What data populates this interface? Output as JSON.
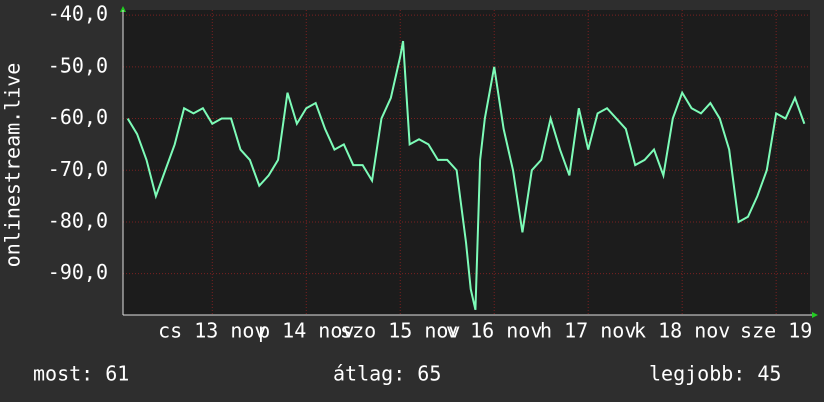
{
  "chart_data": {
    "type": "line",
    "y_label": "onlinestream.live",
    "x": [
      12.1,
      12.2,
      12.3,
      12.4,
      12.5,
      12.6,
      12.7,
      12.8,
      12.9,
      13.0,
      13.1,
      13.2,
      13.3,
      13.4,
      13.5,
      13.6,
      13.7,
      13.8,
      13.9,
      14.0,
      14.1,
      14.2,
      14.3,
      14.4,
      14.5,
      14.6,
      14.7,
      14.8,
      14.9,
      15.0,
      15.03,
      15.1,
      15.2,
      15.3,
      15.4,
      15.5,
      15.6,
      15.7,
      15.75,
      15.8,
      15.85,
      15.9,
      16.0,
      16.1,
      16.2,
      16.3,
      16.4,
      16.5,
      16.6,
      16.7,
      16.8,
      16.9,
      17.0,
      17.1,
      17.2,
      17.3,
      17.4,
      17.5,
      17.6,
      17.7,
      17.8,
      17.9,
      18.0,
      18.1,
      18.2,
      18.3,
      18.4,
      18.5,
      18.6,
      18.7,
      18.8,
      18.9,
      19.0,
      19.1,
      19.2,
      19.3
    ],
    "series": [
      {
        "color": "#7dfcb8",
        "values": [
          -60,
          -63,
          -68,
          -75,
          -70,
          -65,
          -58,
          -59,
          -58,
          -61,
          -60,
          -60,
          -66,
          -68,
          -73,
          -71,
          -68,
          -55,
          -61,
          -58,
          -57,
          -62,
          -66,
          -65,
          -69,
          -69,
          -72,
          -60,
          -56,
          -48,
          -45,
          -65,
          -64,
          -65,
          -68,
          -68,
          -70,
          -84,
          -93,
          -97,
          -68,
          -60,
          -50,
          -62,
          -70,
          -82,
          -70,
          -68,
          -60,
          -66,
          -71,
          -58,
          -66,
          -59,
          -58,
          -60,
          -62,
          -69,
          -68,
          -66,
          -71,
          -60,
          -55,
          -58,
          -59,
          -57,
          -60,
          -66,
          -80,
          -79,
          -75,
          -70,
          -59,
          -60,
          -56,
          -61
        ]
      }
    ],
    "xlim": [
      12.05,
      19.36
    ],
    "xticks": [
      {
        "value": 13,
        "label": "cs 13 nov"
      },
      {
        "value": 14,
        "label": "p 14 nov"
      },
      {
        "value": 15,
        "label": "szo 15 nov"
      },
      {
        "value": 16,
        "label": "v 16 nov"
      },
      {
        "value": 17,
        "label": "h 17 nov"
      },
      {
        "value": 18,
        "label": "k 18 nov"
      },
      {
        "value": 19,
        "label": "sze 19"
      }
    ],
    "ylim": [
      -98,
      -39
    ],
    "yticks": [
      {
        "value": -90,
        "label": "-90,0"
      },
      {
        "value": -80,
        "label": "-80,0"
      },
      {
        "value": -70,
        "label": "-70,0"
      },
      {
        "value": -60,
        "label": "-60,0"
      },
      {
        "value": -50,
        "label": "-50,0"
      },
      {
        "value": -40,
        "label": "-40,0"
      }
    ],
    "grid": true,
    "stats": [
      "most: 61",
      "átlag: 65",
      "legjobb: 45"
    ]
  }
}
